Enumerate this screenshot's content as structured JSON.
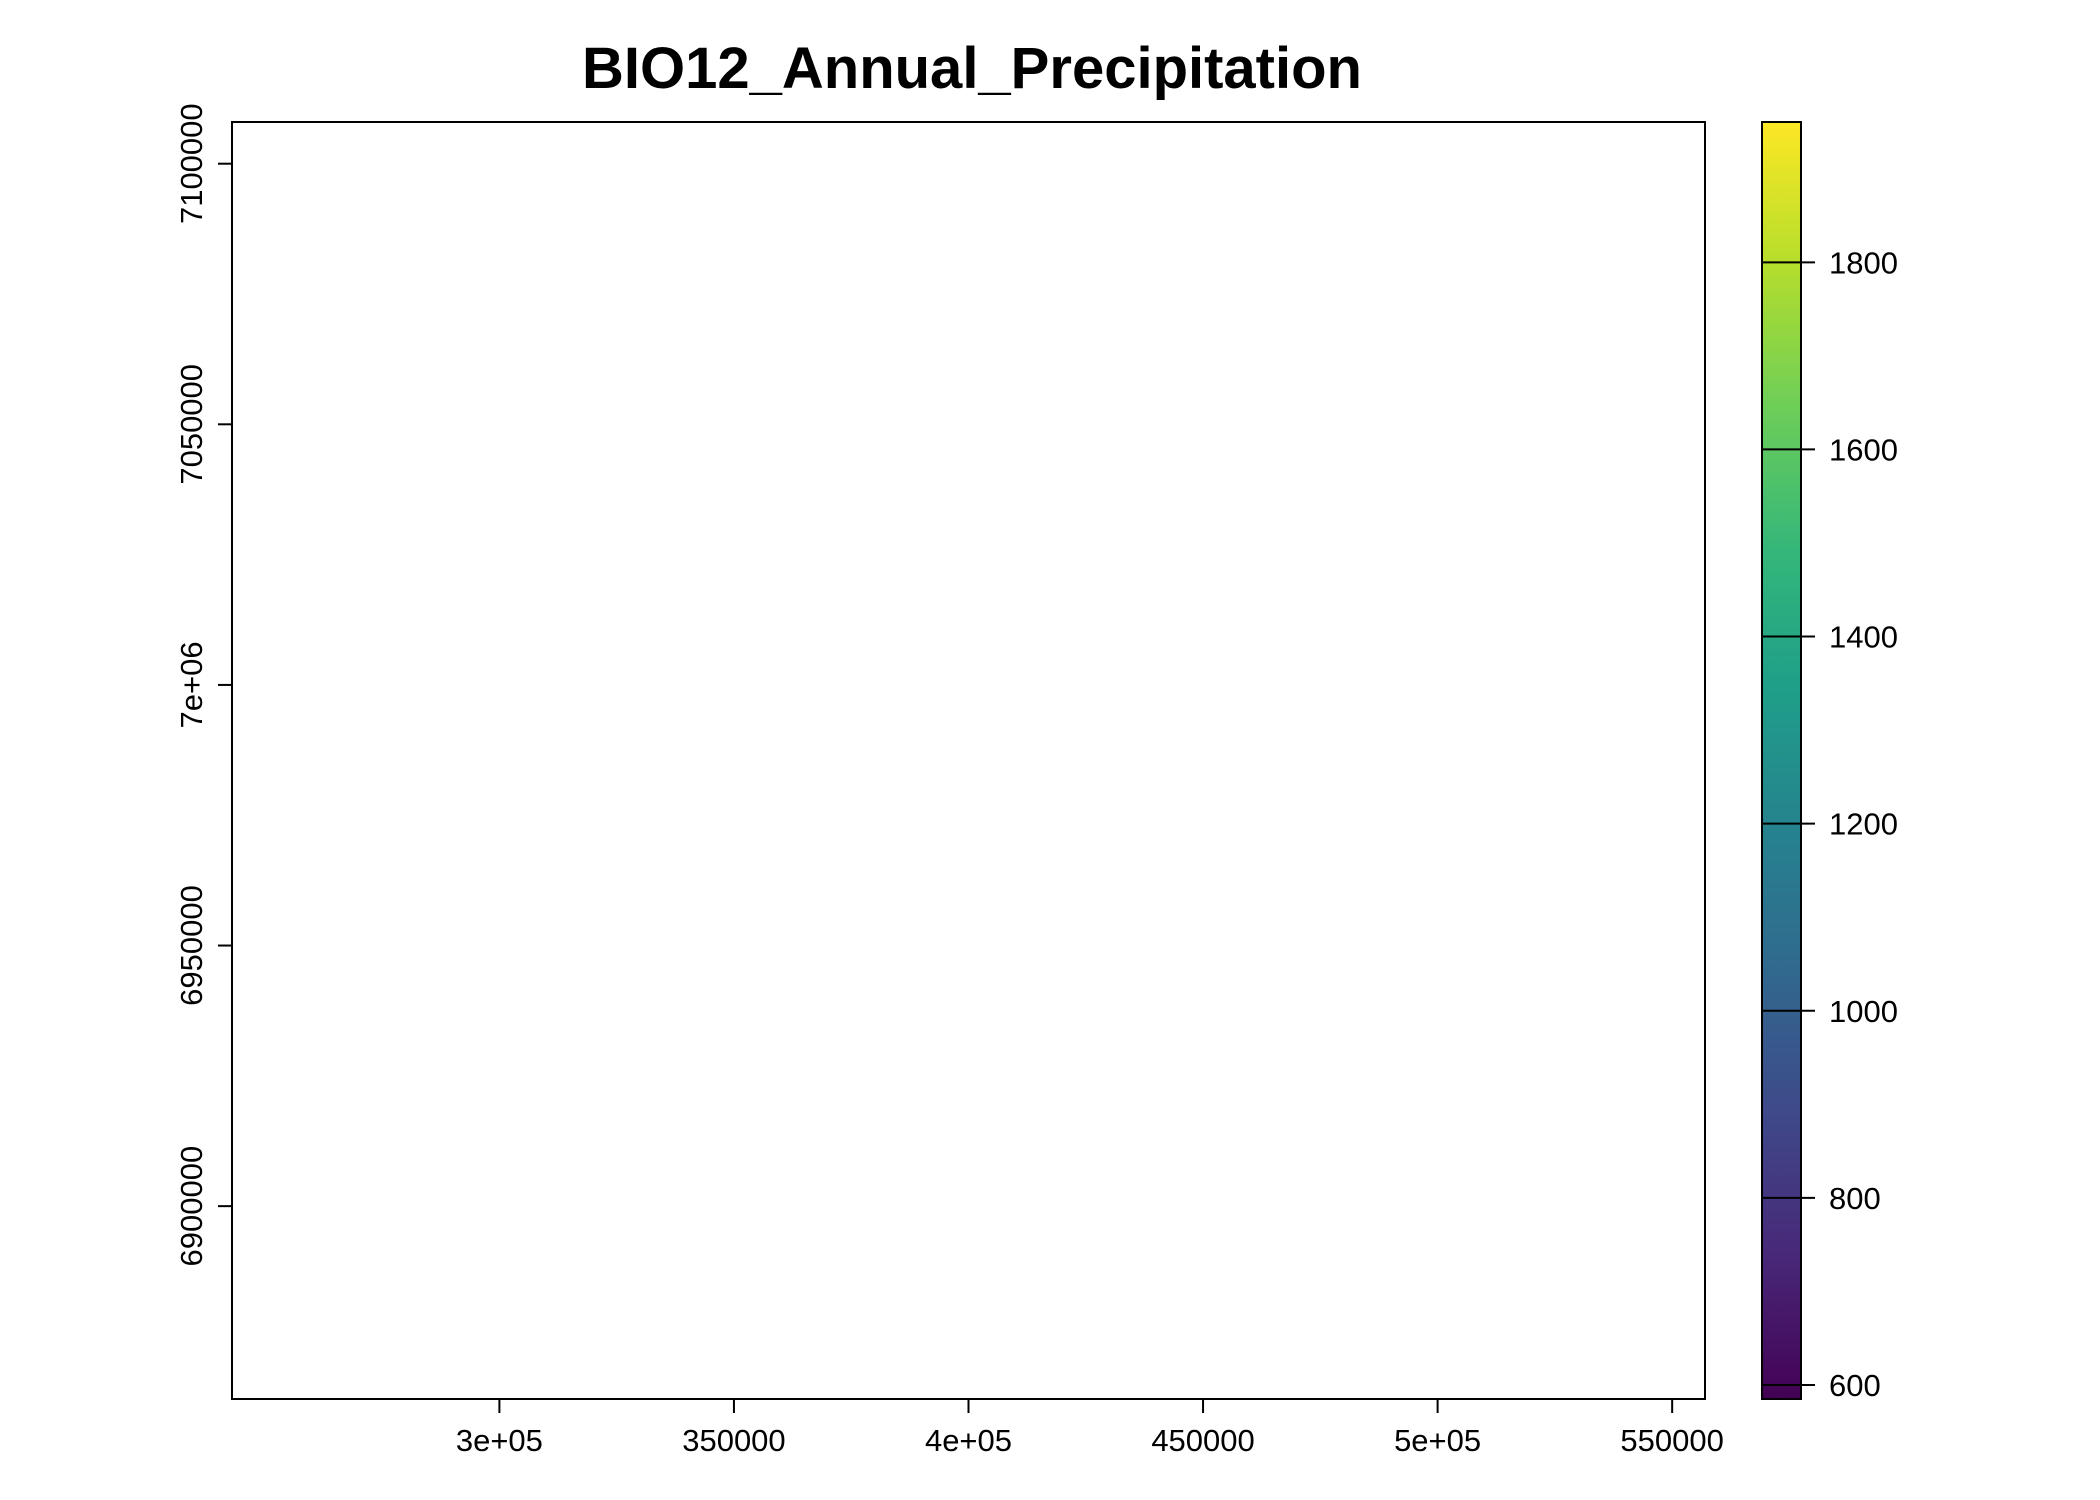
{
  "chart_data": {
    "type": "heatmap",
    "title": "BIO12_Annual_Precipitation",
    "xlabel": "",
    "ylabel": "",
    "xlim": [
      243000,
      557000
    ],
    "ylim": [
      6863000,
      7108000
    ],
    "x_ticks": [
      300000,
      350000,
      400000,
      450000,
      500000,
      550000
    ],
    "x_tick_labels": [
      "3e+05",
      "350000",
      "4e+05",
      "450000",
      "5e+05",
      "550000"
    ],
    "y_ticks": [
      6900000,
      6950000,
      7000000,
      7050000,
      7100000
    ],
    "y_tick_labels": [
      "6900000",
      "6950000",
      "7e+06",
      "7050000",
      "7100000"
    ],
    "legend": {
      "position": "right",
      "colormap": "viridis",
      "range": [
        585,
        1950
      ],
      "ticks": [
        600,
        800,
        1000,
        1200,
        1400,
        1600,
        1800
      ],
      "tick_labels": [
        "600",
        "800",
        "1000",
        "1200",
        "1400",
        "1600",
        "1800"
      ],
      "color_stops": [
        "#440154",
        "#482878",
        "#3e4989",
        "#31688e",
        "#26828e",
        "#1f9e89",
        "#35b779",
        "#6ece58",
        "#b5de2b",
        "#fde725"
      ]
    },
    "grid": false,
    "cell_size": 5600,
    "raster_origin": [
      243000,
      6863000
    ],
    "raster_rows_from_bottom": [
      [
        null,
        null,
        null,
        null,
        null,
        null,
        null,
        null,
        null,
        null,
        null,
        null,
        null,
        null,
        null,
        null,
        null,
        null,
        null,
        null,
        null,
        null,
        null,
        null,
        null,
        null,
        null,
        null,
        null,
        null,
        null,
        null,
        null,
        null,
        null,
        null,
        null,
        null,
        null,
        null,
        null,
        null,
        null,
        null,
        null,
        null,
        null,
        null,
        null,
        null,
        null,
        null,
        null,
        null,
        null,
        null
      ],
      [
        null,
        null,
        null,
        null,
        null,
        null,
        null,
        null,
        null,
        null,
        null,
        null,
        null,
        null,
        null,
        null,
        null,
        null,
        null,
        null,
        null,
        null,
        null,
        null,
        null,
        null,
        null,
        null,
        null,
        null,
        null,
        null,
        null,
        null,
        null,
        null,
        null,
        null,
        null,
        null,
        null,
        null,
        null,
        null,
        null,
        null,
        null,
        null,
        null,
        null,
        null,
        null,
        null,
        null,
        null,
        null
      ],
      [
        null,
        null,
        null,
        null,
        null,
        null,
        null,
        null,
        null,
        null,
        null,
        null,
        null,
        null,
        null,
        null,
        null,
        null,
        null,
        null,
        null,
        null,
        null,
        null,
        null,
        null,
        null,
        null,
        null,
        null,
        null,
        null,
        null,
        null,
        null,
        null,
        null,
        null,
        null,
        null,
        null,
        null,
        null,
        null,
        null,
        null,
        null,
        null,
        null,
        null,
        null,
        null,
        null,
        null,
        null,
        null
      ],
      [
        null,
        null,
        null,
        null,
        null,
        null,
        null,
        null,
        null,
        null,
        null,
        null,
        null,
        null,
        null,
        null,
        null,
        null,
        null,
        null,
        null,
        null,
        null,
        null,
        null,
        null,
        null,
        null,
        null,
        null,
        null,
        null,
        null,
        null,
        null,
        null,
        null,
        null,
        null,
        null,
        null,
        null,
        null,
        null,
        null,
        null,
        null,
        null,
        null,
        null,
        null,
        null,
        null,
        null,
        null,
        null
      ]
    ]
  }
}
